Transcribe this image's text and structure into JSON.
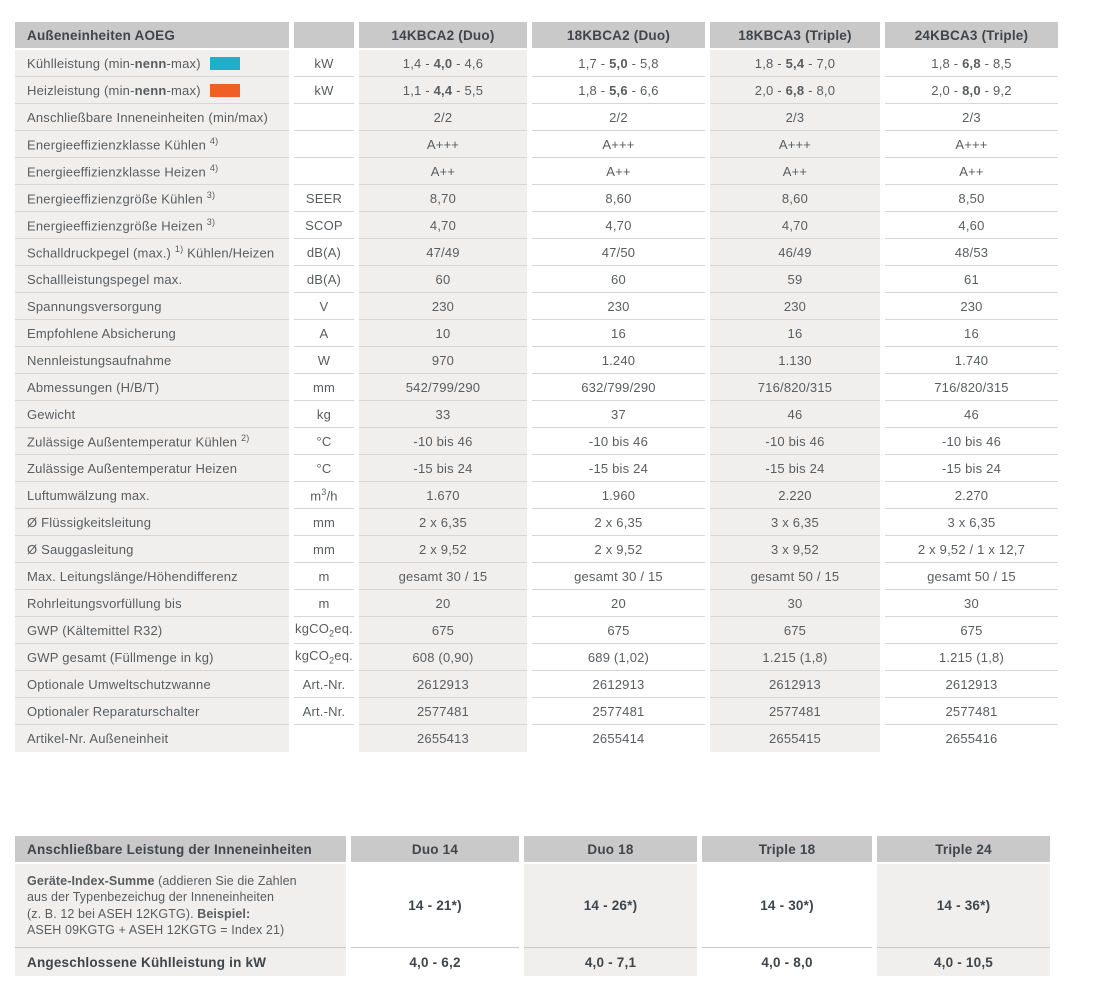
{
  "colors": {
    "header_bg": "#c9c9c9",
    "header_text": "#3f454a",
    "body_text": "#595d60",
    "shaded_column_bg": "#f0efee",
    "row_line": "#d6d6d6",
    "cooling_swatch": "#1db0c8",
    "heating_swatch": "#f05f26"
  },
  "table1": {
    "title": "Außeneinheiten AOEG",
    "columns": [
      "14KBCA2 (Duo)",
      "18KBCA2 (Duo)",
      "18KBCA3 (Triple)",
      "24KBCA3 (Triple)"
    ],
    "rows": [
      {
        "label": "Kühlleistung (min-**nenn**-max)",
        "swatch": "cooling",
        "unit": "kW",
        "values": [
          "1,4 - **4,0** - 4,6",
          "1,7 - **5,0** - 5,8",
          "1,8 - **5,4** - 7,0",
          "1,8 - **6,8** - 8,5"
        ]
      },
      {
        "label": "Heizleistung (min-**nenn**-max)",
        "swatch": "heating",
        "unit": "kW",
        "values": [
          "1,1 - **4,4** - 5,5",
          "1,8 - **5,6** - 6,6",
          "2,0 - **6,8** - 8,0",
          "2,0 - **8,0** - 9,2"
        ]
      },
      {
        "label": "Anschließbare Inneneinheiten (min/max)",
        "unit": "",
        "values": [
          "2/2",
          "2/2",
          "2/3",
          "2/3"
        ]
      },
      {
        "label": "Energieeffizienzklasse Kühlen ^4)^",
        "unit": "",
        "values": [
          "A+++",
          "A+++",
          "A+++",
          "A+++"
        ]
      },
      {
        "label": "Energieeffizienzklasse Heizen ^4)^",
        "unit": "",
        "values": [
          "A++",
          "A++",
          "A++",
          "A++"
        ]
      },
      {
        "label": "Energieeffizienzgröße Kühlen ^3)^",
        "unit": "SEER",
        "values": [
          "8,70",
          "8,60",
          "8,60",
          "8,50"
        ]
      },
      {
        "label": "Energieeffizienzgröße Heizen ^3)^",
        "unit": "SCOP",
        "values": [
          "4,70",
          "4,70",
          "4,70",
          "4,60"
        ]
      },
      {
        "label": "Schalldruckpegel (max.) ^1)^ Kühlen/Heizen",
        "unit": "dB(A)",
        "values": [
          "47/49",
          "47/50",
          "46/49",
          "48/53"
        ]
      },
      {
        "label": "Schallleistungspegel max.",
        "unit": "dB(A)",
        "values": [
          "60",
          "60",
          "59",
          "61"
        ]
      },
      {
        "label": "Spannungsversorgung",
        "unit": "V",
        "values": [
          "230",
          "230",
          "230",
          "230"
        ]
      },
      {
        "label": "Empfohlene Absicherung",
        "unit": "A",
        "values": [
          "10",
          "16",
          "16",
          "16"
        ]
      },
      {
        "label": "Nennleistungsaufnahme",
        "unit": "W",
        "values": [
          "970",
          "1.240",
          "1.130",
          "1.740"
        ]
      },
      {
        "label": "Abmessungen (H/B/T)",
        "unit": "mm",
        "values": [
          "542/799/290",
          "632/799/290",
          "716/820/315",
          "716/820/315"
        ]
      },
      {
        "label": "Gewicht",
        "unit": "kg",
        "values": [
          "33",
          "37",
          "46",
          "46"
        ]
      },
      {
        "label": "Zulässige Außentemperatur Kühlen ^2)^",
        "unit": "°C",
        "values": [
          "-10 bis 46",
          "-10 bis 46",
          "-10 bis 46",
          "-10 bis 46"
        ]
      },
      {
        "label": "Zulässige Außentemperatur Heizen",
        "unit": "°C",
        "values": [
          "-15 bis 24",
          "-15 bis 24",
          "-15 bis 24",
          "-15 bis 24"
        ]
      },
      {
        "label": "Luftumwälzung max.",
        "unit": "m^3^/h",
        "values": [
          "1.670",
          "1.960",
          "2.220",
          "2.270"
        ]
      },
      {
        "label": "Ø Flüssigkeitsleitung",
        "unit": "mm",
        "values": [
          "2 x 6,35",
          "2 x 6,35",
          "3 x 6,35",
          "3 x 6,35"
        ]
      },
      {
        "label": "Ø Sauggasleitung",
        "unit": "mm",
        "values": [
          "2 x 9,52",
          "2 x 9,52",
          "3 x 9,52",
          "2 x 9,52 / 1 x 12,7"
        ]
      },
      {
        "label": "Max. Leitungslänge/Höhendifferenz",
        "unit": "m",
        "values": [
          "gesamt 30 / 15",
          "gesamt 30 / 15",
          "gesamt 50 / 15",
          "gesamt 50 / 15"
        ]
      },
      {
        "label": "Rohrleitungsvorfüllung bis",
        "unit": "m",
        "values": [
          "20",
          "20",
          "30",
          "30"
        ]
      },
      {
        "label": "GWP (Kältemittel R32)",
        "unit": "kgCO~2~eq.",
        "small_unit": true,
        "values": [
          "675",
          "675",
          "675",
          "675"
        ]
      },
      {
        "label": "GWP gesamt (Füllmenge in kg)",
        "unit": "kgCO~2~eq.",
        "small_unit": true,
        "values": [
          "608 (0,90)",
          "689 (1,02)",
          "1.215 (1,8)",
          "1.215 (1,8)"
        ]
      },
      {
        "label": "Optionale Umweltschutzwanne",
        "unit": "Art.-Nr.",
        "values": [
          "2612913",
          "2612913",
          "2612913",
          "2612913"
        ]
      },
      {
        "label": "Optionaler Reparaturschalter",
        "unit": "Art.-Nr.",
        "values": [
          "2577481",
          "2577481",
          "2577481",
          "2577481"
        ]
      },
      {
        "label": "Artikel-Nr. Außeneinheit",
        "unit": "",
        "values": [
          "2655413",
          "2655414",
          "2655415",
          "2655416"
        ]
      }
    ]
  },
  "table2": {
    "title": "Anschließbare Leistung der Inneneinheiten",
    "columns": [
      "Duo 14",
      "Duo 18",
      "Triple 18",
      "Triple 24"
    ],
    "rows": [
      {
        "label": "**Geräte-Index-Summe** (addieren Sie die Zahlen\naus der Typenbezeichug der Inneneinheiten\n(z. B. 12 bei ASEH 12KGTG). **Beispiel:**\nASEH 09KGTG + ASEH 12KGTG = Index 21)",
        "values": [
          "14 - 21*)",
          "14 - 26*)",
          "14 - 30*)",
          "14 - 36*)"
        ]
      },
      {
        "label": "**Angeschlossene Kühlleistung in kW**",
        "values": [
          "4,0 - 6,2",
          "4,0 - 7,1",
          "4,0 - 8,0",
          "4,0 - 10,5"
        ]
      }
    ]
  }
}
